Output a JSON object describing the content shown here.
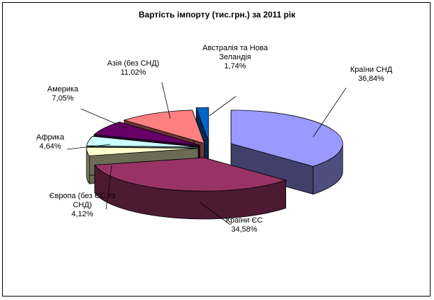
{
  "chart_data": {
    "type": "pie",
    "title": "Вартість імпорту (тис.грн.) за 2011 рік",
    "three_d": true,
    "exploded": true,
    "legend": "none",
    "slices": [
      {
        "name": "Країни СНД",
        "value": 36.84,
        "label": "36,84%",
        "color": "#9999ff"
      },
      {
        "name": "Країни ЄС",
        "value": 34.58,
        "label": "34,58%",
        "color": "#993366"
      },
      {
        "name": "Європа (без ЄС та СНД)",
        "value": 4.12,
        "label": "4,12%",
        "color": "#ffffcc"
      },
      {
        "name": "Африка",
        "value": 4.64,
        "label": "4,64%",
        "color": "#ccffff"
      },
      {
        "name": "Америка",
        "value": 7.05,
        "label": "7,05%",
        "color": "#660066"
      },
      {
        "name": "Азія (без СНД)",
        "value": 11.02,
        "label": "11,02%",
        "color": "#ff8080"
      },
      {
        "name": "Австралія та Нова Зеландія",
        "value": 1.74,
        "label": "1,74%",
        "color": "#0066cc"
      }
    ]
  }
}
